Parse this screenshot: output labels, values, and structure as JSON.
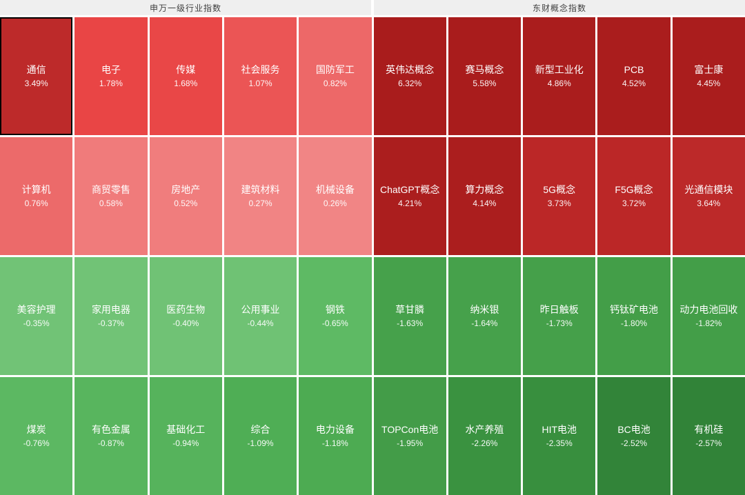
{
  "headers": [
    {
      "label": "申万一级行业指数"
    },
    {
      "label": "东财概念指数"
    }
  ],
  "colors": {
    "gap": "#ffffff",
    "header_bg": "#efefef",
    "header_text": "#404040",
    "tile_text": "#ffffff",
    "selected_border": "#000000"
  },
  "chart_data": {
    "type": "heatmap",
    "groups": [
      "申万一级行业指数",
      "东财概念指数"
    ],
    "unit": "%",
    "layout": {
      "rows": 4,
      "cols": 10,
      "group_split_col": 5
    },
    "tiles": [
      {
        "label": "通信",
        "value": 3.49,
        "display": "3.49%",
        "color": "#bd2a2a",
        "group": 0,
        "selected": true
      },
      {
        "label": "电子",
        "value": 1.78,
        "display": "1.78%",
        "color": "#e94545",
        "group": 0,
        "selected": false
      },
      {
        "label": "传媒",
        "value": 1.68,
        "display": "1.68%",
        "color": "#e94747",
        "group": 0,
        "selected": false
      },
      {
        "label": "社会服务",
        "value": 1.07,
        "display": "1.07%",
        "color": "#eb5555",
        "group": 0,
        "selected": false
      },
      {
        "label": "国防军工",
        "value": 0.82,
        "display": "0.82%",
        "color": "#ed6868",
        "group": 0,
        "selected": false
      },
      {
        "label": "英伟达概念",
        "value": 6.32,
        "display": "6.32%",
        "color": "#a91c1c",
        "group": 1,
        "selected": false
      },
      {
        "label": "赛马概念",
        "value": 5.58,
        "display": "5.58%",
        "color": "#a91c1c",
        "group": 1,
        "selected": false
      },
      {
        "label": "新型工业化",
        "value": 4.86,
        "display": "4.86%",
        "color": "#aa1d1d",
        "group": 1,
        "selected": false
      },
      {
        "label": "PCB",
        "value": 4.52,
        "display": "4.52%",
        "color": "#aa1d1d",
        "group": 1,
        "selected": false
      },
      {
        "label": "富士康",
        "value": 4.45,
        "display": "4.45%",
        "color": "#aa1d1d",
        "group": 1,
        "selected": false
      },
      {
        "label": "计算机",
        "value": 0.76,
        "display": "0.76%",
        "color": "#ec6a6a",
        "group": 0,
        "selected": false
      },
      {
        "label": "商贸零售",
        "value": 0.58,
        "display": "0.58%",
        "color": "#f07b7b",
        "group": 0,
        "selected": false
      },
      {
        "label": "房地产",
        "value": 0.52,
        "display": "0.52%",
        "color": "#f07d7d",
        "group": 0,
        "selected": false
      },
      {
        "label": "建筑材料",
        "value": 0.27,
        "display": "0.27%",
        "color": "#f18484",
        "group": 0,
        "selected": false
      },
      {
        "label": "机械设备",
        "value": 0.26,
        "display": "0.26%",
        "color": "#f18585",
        "group": 0,
        "selected": false
      },
      {
        "label": "ChatGPT概念",
        "value": 4.21,
        "display": "4.21%",
        "color": "#ab1e1e",
        "group": 1,
        "selected": false
      },
      {
        "label": "算力概念",
        "value": 4.14,
        "display": "4.14%",
        "color": "#ab1e1e",
        "group": 1,
        "selected": false
      },
      {
        "label": "5G概念",
        "value": 3.73,
        "display": "3.73%",
        "color": "#bb2727",
        "group": 1,
        "selected": false
      },
      {
        "label": "F5G概念",
        "value": 3.72,
        "display": "3.72%",
        "color": "#bb2727",
        "group": 1,
        "selected": false
      },
      {
        "label": "光通信模块",
        "value": 3.64,
        "display": "3.64%",
        "color": "#bc2929",
        "group": 1,
        "selected": false
      },
      {
        "label": "美容护理",
        "value": -0.35,
        "display": "-0.35%",
        "color": "#71c376",
        "group": 0,
        "selected": false
      },
      {
        "label": "家用电器",
        "value": -0.37,
        "display": "-0.37%",
        "color": "#71c376",
        "group": 0,
        "selected": false
      },
      {
        "label": "医药生物",
        "value": -0.4,
        "display": "-0.40%",
        "color": "#70c275",
        "group": 0,
        "selected": false
      },
      {
        "label": "公用事业",
        "value": -0.44,
        "display": "-0.44%",
        "color": "#6fc274",
        "group": 0,
        "selected": false
      },
      {
        "label": "钢铁",
        "value": -0.65,
        "display": "-0.65%",
        "color": "#5eba64",
        "group": 0,
        "selected": false
      },
      {
        "label": "草甘膦",
        "value": -1.63,
        "display": "-1.63%",
        "color": "#46a14b",
        "group": 1,
        "selected": false
      },
      {
        "label": "纳米银",
        "value": -1.64,
        "display": "-1.64%",
        "color": "#46a14b",
        "group": 1,
        "selected": false
      },
      {
        "label": "昨日触板",
        "value": -1.73,
        "display": "-1.73%",
        "color": "#45a04a",
        "group": 1,
        "selected": false
      },
      {
        "label": "钙钛矿电池",
        "value": -1.8,
        "display": "-1.80%",
        "color": "#439e48",
        "group": 1,
        "selected": false
      },
      {
        "label": "动力电池回收",
        "value": -1.82,
        "display": "-1.82%",
        "color": "#439e48",
        "group": 1,
        "selected": false
      },
      {
        "label": "煤炭",
        "value": -0.76,
        "display": "-0.76%",
        "color": "#5cb862",
        "group": 0,
        "selected": false
      },
      {
        "label": "有色金属",
        "value": -0.87,
        "display": "-0.87%",
        "color": "#58b55e",
        "group": 0,
        "selected": false
      },
      {
        "label": "基础化工",
        "value": -0.94,
        "display": "-0.94%",
        "color": "#56b35c",
        "group": 0,
        "selected": false
      },
      {
        "label": "综合",
        "value": -1.09,
        "display": "-1.09%",
        "color": "#4fae55",
        "group": 0,
        "selected": false
      },
      {
        "label": "电力设备",
        "value": -1.18,
        "display": "-1.18%",
        "color": "#4dab52",
        "group": 0,
        "selected": false
      },
      {
        "label": "TOPCon电池",
        "value": -1.95,
        "display": "-1.95%",
        "color": "#439c48",
        "group": 1,
        "selected": false
      },
      {
        "label": "水产养殖",
        "value": -2.26,
        "display": "-2.26%",
        "color": "#3a9240",
        "group": 1,
        "selected": false
      },
      {
        "label": "HIT电池",
        "value": -2.35,
        "display": "-2.35%",
        "color": "#388f3e",
        "group": 1,
        "selected": false
      },
      {
        "label": "BC电池",
        "value": -2.52,
        "display": "-2.52%",
        "color": "#328439",
        "group": 1,
        "selected": false
      },
      {
        "label": "有机硅",
        "value": -2.57,
        "display": "-2.57%",
        "color": "#318338",
        "group": 1,
        "selected": false
      }
    ]
  }
}
